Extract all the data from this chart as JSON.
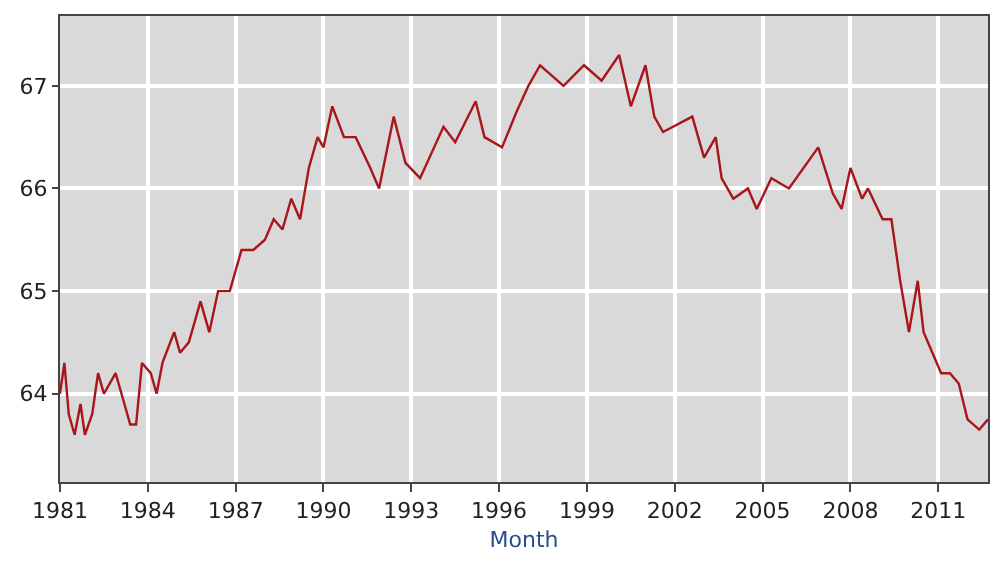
{
  "chart_data": {
    "type": "line",
    "xlabel": "Month",
    "x": [
      1981.0,
      1981.15,
      1981.3,
      1981.5,
      1981.7,
      1981.85,
      1982.1,
      1982.3,
      1982.5,
      1982.9,
      1983.1,
      1983.4,
      1983.6,
      1983.8,
      1984.1,
      1984.3,
      1984.5,
      1984.9,
      1985.1,
      1985.4,
      1985.8,
      1986.1,
      1986.4,
      1986.8,
      1987.2,
      1987.6,
      1988.0,
      1988.3,
      1988.6,
      1988.9,
      1989.2,
      1989.5,
      1989.8,
      1990.0,
      1990.3,
      1990.7,
      1991.1,
      1991.6,
      1991.9,
      1992.4,
      1992.8,
      1993.3,
      1994.1,
      1994.5,
      1995.2,
      1995.5,
      1996.1,
      1996.6,
      1997.0,
      1997.4,
      1998.2,
      1998.9,
      1999.5,
      2000.1,
      2000.5,
      2001.0,
      2001.3,
      2001.6,
      2002.6,
      2003.0,
      2003.4,
      2003.6,
      2004.0,
      2004.5,
      2004.8,
      2005.3,
      2005.9,
      2006.9,
      2007.4,
      2007.7,
      2008.0,
      2008.4,
      2008.6,
      2009.1,
      2009.4,
      2009.7,
      2010.0,
      2010.3,
      2010.5,
      2011.1,
      2011.4,
      2011.7,
      2012.0,
      2012.4,
      2012.7
    ],
    "series": [
      {
        "color": "#a8151b",
        "values": [
          64.0,
          64.3,
          63.8,
          63.6,
          63.9,
          63.6,
          63.8,
          64.2,
          64.0,
          64.2,
          64.0,
          63.7,
          63.7,
          64.3,
          64.2,
          64.0,
          64.3,
          64.6,
          64.4,
          64.5,
          64.9,
          64.6,
          65.0,
          65.0,
          65.4,
          65.4,
          65.5,
          65.7,
          65.6,
          65.9,
          65.7,
          66.2,
          66.5,
          66.4,
          66.8,
          66.5,
          66.5,
          66.2,
          66.0,
          66.7,
          66.25,
          66.1,
          66.6,
          66.45,
          66.85,
          66.5,
          66.4,
          66.75,
          67.0,
          67.2,
          67.0,
          67.2,
          67.05,
          67.3,
          66.8,
          67.2,
          66.7,
          66.55,
          66.7,
          66.3,
          66.5,
          66.1,
          65.9,
          66.0,
          65.8,
          66.1,
          66.0,
          66.4,
          65.95,
          65.8,
          66.2,
          65.9,
          66.0,
          65.7,
          65.7,
          65.1,
          64.6,
          65.1,
          64.6,
          64.2,
          64.2,
          64.1,
          63.75,
          63.65,
          63.75
        ]
      }
    ],
    "xlim": [
      1981,
      2012.7
    ],
    "xticks": [
      1981,
      1984,
      1987,
      1990,
      1993,
      1996,
      1999,
      2002,
      2005,
      2008,
      2011
    ],
    "ylim": [
      63.14,
      67.68
    ],
    "yticks": [
      64,
      65,
      66,
      67
    ],
    "grid": true,
    "legend": false,
    "marker": "none",
    "line_style": "solid"
  }
}
